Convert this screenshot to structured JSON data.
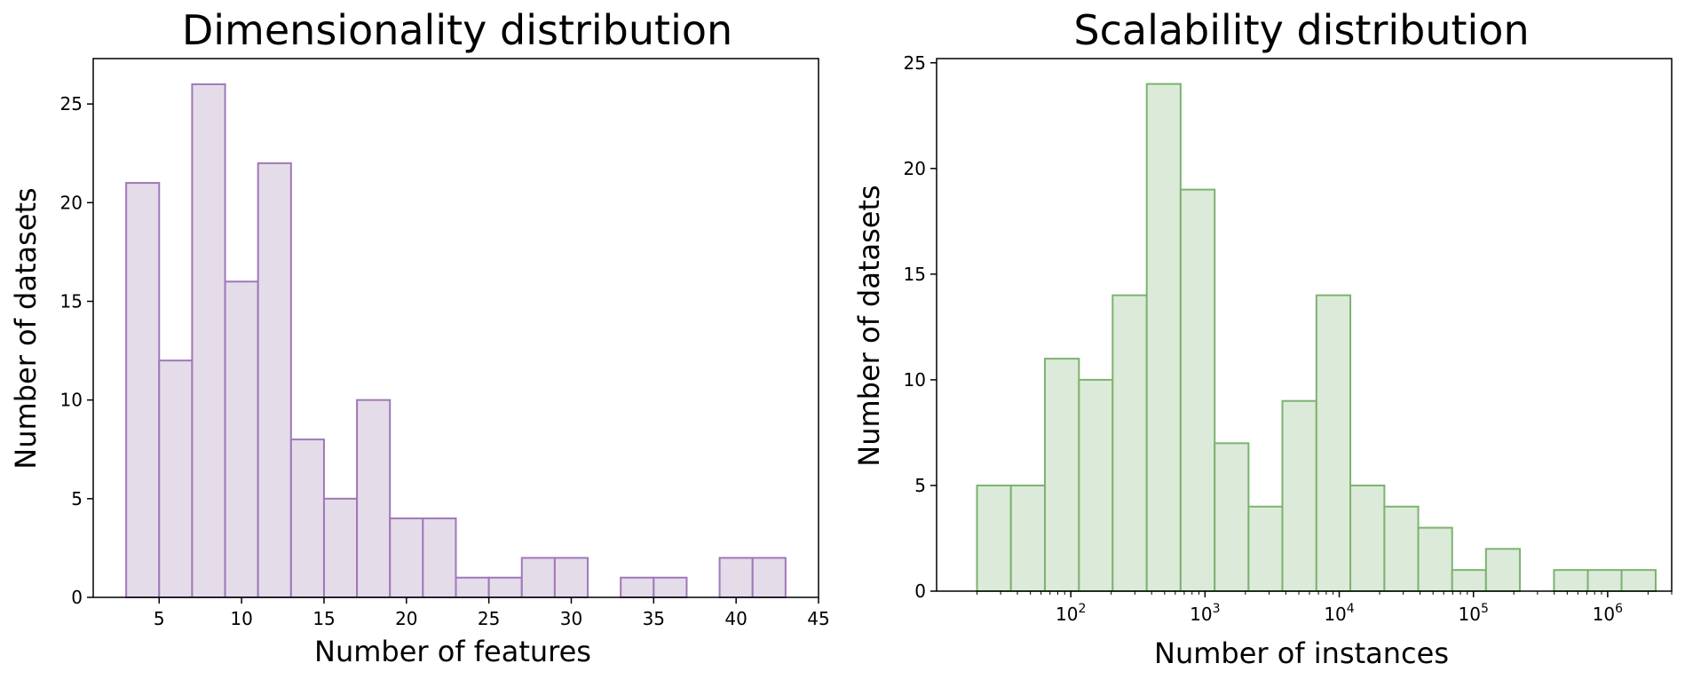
{
  "colors": {
    "left_fill": "#e5dcea",
    "left_edge": "#9f78b8",
    "right_fill": "#dcead9",
    "right_edge": "#7cb36f"
  },
  "chart_data": [
    {
      "type": "bar",
      "title": "Dimensionality distribution",
      "xlabel": "Number of features",
      "ylabel": "Number of datasets",
      "xlim": [
        1,
        45
      ],
      "ylim": [
        0,
        27.3
      ],
      "x_ticks": [
        5,
        10,
        15,
        20,
        25,
        30,
        35,
        40,
        45
      ],
      "y_ticks": [
        0,
        5,
        10,
        15,
        20,
        25
      ],
      "grid": false,
      "series": [
        {
          "bins": [
            {
              "x0": 3,
              "x1": 5,
              "value": 21
            },
            {
              "x0": 5,
              "x1": 7,
              "value": 12
            },
            {
              "x0": 7,
              "x1": 9,
              "value": 26
            },
            {
              "x0": 9,
              "x1": 11,
              "value": 16
            },
            {
              "x0": 11,
              "x1": 13,
              "value": 22
            },
            {
              "x0": 13,
              "x1": 15,
              "value": 8
            },
            {
              "x0": 15,
              "x1": 17,
              "value": 5
            },
            {
              "x0": 17,
              "x1": 19,
              "value": 10
            },
            {
              "x0": 19,
              "x1": 21,
              "value": 4
            },
            {
              "x0": 21,
              "x1": 23,
              "value": 4
            },
            {
              "x0": 23,
              "x1": 25,
              "value": 1
            },
            {
              "x0": 25,
              "x1": 27,
              "value": 1
            },
            {
              "x0": 27,
              "x1": 29,
              "value": 2
            },
            {
              "x0": 29,
              "x1": 31,
              "value": 2
            },
            {
              "x0": 31,
              "x1": 33,
              "value": 0
            },
            {
              "x0": 33,
              "x1": 35,
              "value": 1
            },
            {
              "x0": 35,
              "x1": 37,
              "value": 1
            },
            {
              "x0": 37,
              "x1": 39,
              "value": 0
            },
            {
              "x0": 39,
              "x1": 41,
              "value": 2
            },
            {
              "x0": 41,
              "x1": 43,
              "value": 2
            }
          ]
        }
      ]
    },
    {
      "type": "bar",
      "title": "Scalability distribution",
      "xlabel": "Number of instances",
      "ylabel": "Number of datasets",
      "x_scale": "log",
      "xlim": [
        10,
        3000000
      ],
      "ylim": [
        0,
        25.2
      ],
      "x_ticks": [
        {
          "value": 100,
          "base": "10",
          "exp": "2"
        },
        {
          "value": 1000,
          "base": "10",
          "exp": "3"
        },
        {
          "value": 10000,
          "base": "10",
          "exp": "4"
        },
        {
          "value": 100000,
          "base": "10",
          "exp": "5"
        },
        {
          "value": 1000000,
          "base": "10",
          "exp": "6"
        }
      ],
      "y_ticks": [
        0,
        5,
        10,
        15,
        20,
        25
      ],
      "grid": false,
      "series": [
        {
          "bins": [
            {
              "x0": 20,
              "x1": 35.8,
              "value": 5
            },
            {
              "x0": 35.8,
              "x1": 64.1,
              "value": 5
            },
            {
              "x0": 64.1,
              "x1": 115,
              "value": 11
            },
            {
              "x0": 115,
              "x1": 205,
              "value": 10
            },
            {
              "x0": 205,
              "x1": 368,
              "value": 14
            },
            {
              "x0": 368,
              "x1": 658,
              "value": 24
            },
            {
              "x0": 658,
              "x1": 1180,
              "value": 19
            },
            {
              "x0": 1180,
              "x1": 2110,
              "value": 7
            },
            {
              "x0": 2110,
              "x1": 3770,
              "value": 4
            },
            {
              "x0": 3770,
              "x1": 6760,
              "value": 9
            },
            {
              "x0": 6760,
              "x1": 12100,
              "value": 14
            },
            {
              "x0": 12100,
              "x1": 21700,
              "value": 5
            },
            {
              "x0": 21700,
              "x1": 38800,
              "value": 4
            },
            {
              "x0": 38800,
              "x1": 69400,
              "value": 3
            },
            {
              "x0": 69400,
              "x1": 124000,
              "value": 1
            },
            {
              "x0": 124000,
              "x1": 222000,
              "value": 2
            },
            {
              "x0": 222000,
              "x1": 398000,
              "value": 0
            },
            {
              "x0": 398000,
              "x1": 712000,
              "value": 1
            },
            {
              "x0": 712000,
              "x1": 1270000,
              "value": 1
            },
            {
              "x0": 1270000,
              "x1": 2280000,
              "value": 1
            }
          ]
        }
      ]
    }
  ]
}
